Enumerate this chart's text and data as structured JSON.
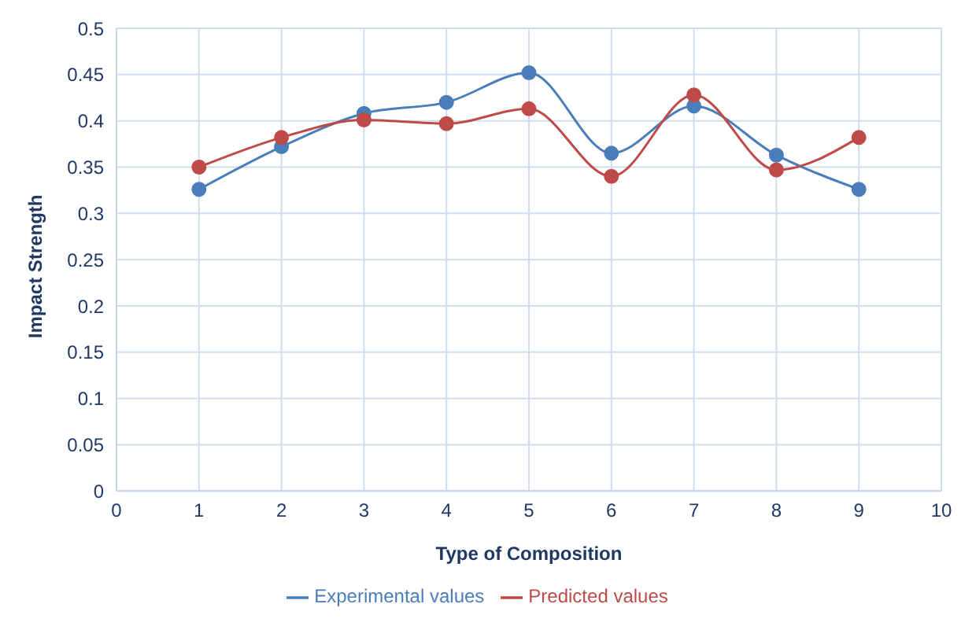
{
  "chart_data": {
    "type": "line",
    "xlabel": "Type of Composition",
    "ylabel": "Impact Strength",
    "x": [
      1,
      2,
      3,
      4,
      5,
      6,
      7,
      8,
      9
    ],
    "series": [
      {
        "name": "Experimental values",
        "color": "#4a7ebb",
        "values": [
          0.326,
          0.372,
          0.408,
          0.42,
          0.452,
          0.365,
          0.416,
          0.363,
          0.326
        ]
      },
      {
        "name": "Predicted values",
        "color": "#be4b48",
        "values": [
          0.35,
          0.382,
          0.401,
          0.397,
          0.413,
          0.34,
          0.428,
          0.347,
          0.382
        ]
      }
    ],
    "xlim": [
      0,
      10
    ],
    "xticks": [
      0,
      1,
      2,
      3,
      4,
      5,
      6,
      7,
      8,
      9,
      10
    ],
    "ylim": [
      0,
      0.5
    ],
    "yticks": [
      0,
      0.05,
      0.1,
      0.15,
      0.2,
      0.25,
      0.3,
      0.35,
      0.4,
      0.45,
      0.5
    ],
    "grid": true,
    "legend": "bottom",
    "marker": "circle",
    "line_style": "solid"
  }
}
